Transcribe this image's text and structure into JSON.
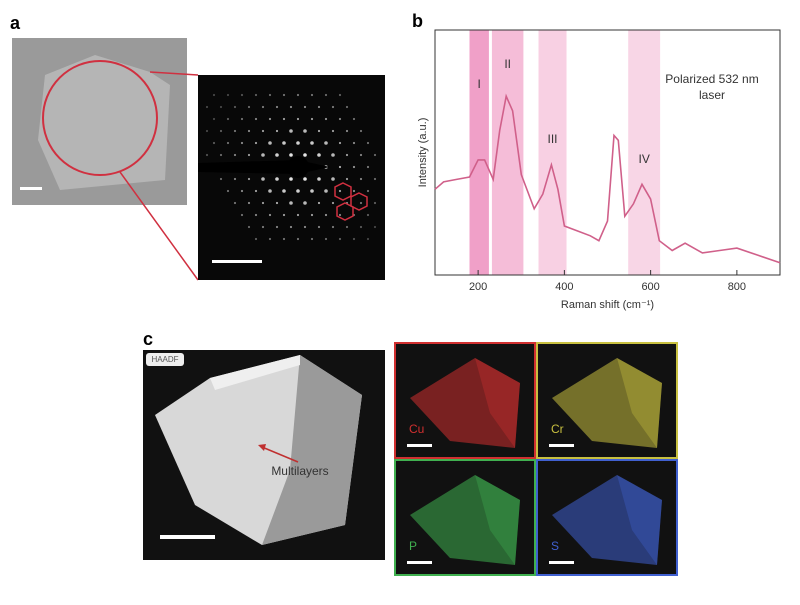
{
  "panels": {
    "a": {
      "label": "a"
    },
    "c": {
      "label": "c",
      "haadf": "HAADF",
      "annotation": "Multilayers",
      "maps": [
        {
          "element": "Cu",
          "color": "#d03030"
        },
        {
          "element": "Cr",
          "color": "#c8c040"
        },
        {
          "element": "P",
          "color": "#40b050"
        },
        {
          "element": "S",
          "color": "#4060d0"
        }
      ]
    }
  },
  "chart_data": {
    "type": "line",
    "label": "b",
    "xlabel": "Raman shift (cm⁻¹)",
    "ylabel": "Intensity (a.u.)",
    "annotation": [
      "Polarized 532 nm",
      "laser"
    ],
    "x": [
      100,
      120,
      150,
      180,
      200,
      215,
      235,
      250,
      265,
      280,
      300,
      330,
      350,
      370,
      385,
      400,
      430,
      460,
      480,
      500,
      515,
      525,
      540,
      560,
      580,
      600,
      620,
      650,
      680,
      720,
      760,
      800,
      850,
      900
    ],
    "values": [
      35,
      38,
      39,
      40,
      47,
      47,
      39,
      59,
      73,
      67,
      41,
      27,
      33,
      45,
      35,
      20,
      18,
      16,
      14,
      22,
      57,
      55,
      24,
      29,
      37,
      31,
      14,
      10,
      13,
      9,
      10,
      11,
      8,
      5
    ],
    "color": "#d0608a",
    "bands": [
      {
        "label": "I",
        "range": [
          180,
          225
        ],
        "color": "#f0a0c8"
      },
      {
        "label": "II",
        "range": [
          232,
          305
        ],
        "color": "#f5bdd8"
      },
      {
        "label": "III",
        "range": [
          340,
          405
        ],
        "color": "#f8d0e3"
      },
      {
        "label": "IV",
        "range": [
          548,
          622
        ],
        "color": "#f8d6e6"
      }
    ],
    "xlim": [
      100,
      900
    ],
    "ylim": [
      0,
      100
    ],
    "xticks": [
      200,
      400,
      600,
      800
    ]
  }
}
